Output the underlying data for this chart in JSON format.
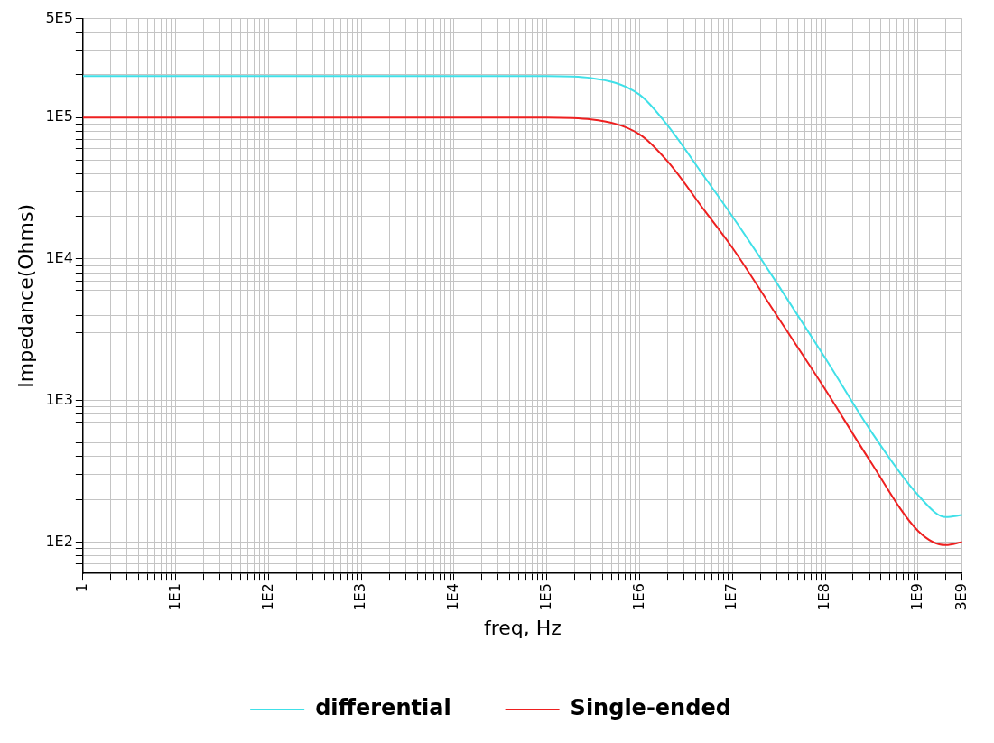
{
  "chart_data": {
    "type": "line",
    "xlabel": "freq, Hz",
    "ylabel": "Impedance(Ohms)",
    "log": "xy",
    "grid": true,
    "legend": "bottom",
    "marker": "none",
    "line_style": "solid",
    "xlim": [
      1,
      3000000000
    ],
    "ylim": [
      60,
      500000
    ],
    "xticks": [
      {
        "value": 1,
        "label": "1"
      },
      {
        "value": 2,
        "label": null
      },
      {
        "value": 3,
        "label": null
      },
      {
        "value": 4,
        "label": null
      },
      {
        "value": 5,
        "label": null
      },
      {
        "value": 6,
        "label": null
      },
      {
        "value": 7,
        "label": null
      },
      {
        "value": 8,
        "label": null
      },
      {
        "value": 9,
        "label": null
      },
      {
        "value": 10,
        "label": "1E1"
      },
      {
        "value": 20,
        "label": null
      },
      {
        "value": 30,
        "label": null
      },
      {
        "value": 40,
        "label": null
      },
      {
        "value": 50,
        "label": null
      },
      {
        "value": 60,
        "label": null
      },
      {
        "value": 70,
        "label": null
      },
      {
        "value": 80,
        "label": null
      },
      {
        "value": 90,
        "label": null
      },
      {
        "value": 100,
        "label": "1E2"
      },
      {
        "value": 200,
        "label": null
      },
      {
        "value": 300,
        "label": null
      },
      {
        "value": 400,
        "label": null
      },
      {
        "value": 500,
        "label": null
      },
      {
        "value": 600,
        "label": null
      },
      {
        "value": 700,
        "label": null
      },
      {
        "value": 800,
        "label": null
      },
      {
        "value": 900,
        "label": null
      },
      {
        "value": 1000,
        "label": "1E3"
      },
      {
        "value": 2000,
        "label": null
      },
      {
        "value": 3000,
        "label": null
      },
      {
        "value": 4000,
        "label": null
      },
      {
        "value": 5000,
        "label": null
      },
      {
        "value": 6000,
        "label": null
      },
      {
        "value": 7000,
        "label": null
      },
      {
        "value": 8000,
        "label": null
      },
      {
        "value": 9000,
        "label": null
      },
      {
        "value": 10000,
        "label": "1E4"
      },
      {
        "value": 20000,
        "label": null
      },
      {
        "value": 30000,
        "label": null
      },
      {
        "value": 40000,
        "label": null
      },
      {
        "value": 50000,
        "label": null
      },
      {
        "value": 60000,
        "label": null
      },
      {
        "value": 70000,
        "label": null
      },
      {
        "value": 80000,
        "label": null
      },
      {
        "value": 90000,
        "label": null
      },
      {
        "value": 100000,
        "label": "1E5"
      },
      {
        "value": 200000,
        "label": null
      },
      {
        "value": 300000,
        "label": null
      },
      {
        "value": 400000,
        "label": null
      },
      {
        "value": 500000,
        "label": null
      },
      {
        "value": 600000,
        "label": null
      },
      {
        "value": 700000,
        "label": null
      },
      {
        "value": 800000,
        "label": null
      },
      {
        "value": 900000,
        "label": null
      },
      {
        "value": 1000000,
        "label": "1E6"
      },
      {
        "value": 2000000,
        "label": null
      },
      {
        "value": 3000000,
        "label": null
      },
      {
        "value": 4000000,
        "label": null
      },
      {
        "value": 5000000,
        "label": null
      },
      {
        "value": 6000000,
        "label": null
      },
      {
        "value": 7000000,
        "label": null
      },
      {
        "value": 8000000,
        "label": null
      },
      {
        "value": 9000000,
        "label": null
      },
      {
        "value": 10000000,
        "label": "1E7"
      },
      {
        "value": 20000000,
        "label": null
      },
      {
        "value": 30000000,
        "label": null
      },
      {
        "value": 40000000,
        "label": null
      },
      {
        "value": 50000000,
        "label": null
      },
      {
        "value": 60000000,
        "label": null
      },
      {
        "value": 70000000,
        "label": null
      },
      {
        "value": 80000000,
        "label": null
      },
      {
        "value": 90000000,
        "label": null
      },
      {
        "value": 100000000,
        "label": "1E8"
      },
      {
        "value": 200000000,
        "label": null
      },
      {
        "value": 300000000,
        "label": null
      },
      {
        "value": 400000000,
        "label": null
      },
      {
        "value": 500000000,
        "label": null
      },
      {
        "value": 600000000,
        "label": null
      },
      {
        "value": 700000000,
        "label": null
      },
      {
        "value": 800000000,
        "label": null
      },
      {
        "value": 900000000,
        "label": null
      },
      {
        "value": 1000000000,
        "label": "1E9"
      },
      {
        "value": 2000000000,
        "label": null
      },
      {
        "value": 3000000000,
        "label": "3E9"
      }
    ],
    "yticks": [
      {
        "value": 70,
        "label": null
      },
      {
        "value": 80,
        "label": null
      },
      {
        "value": 90,
        "label": null
      },
      {
        "value": 100,
        "label": "1E2"
      },
      {
        "value": 200,
        "label": null
      },
      {
        "value": 300,
        "label": null
      },
      {
        "value": 400,
        "label": null
      },
      {
        "value": 500,
        "label": null
      },
      {
        "value": 600,
        "label": null
      },
      {
        "value": 700,
        "label": null
      },
      {
        "value": 800,
        "label": null
      },
      {
        "value": 900,
        "label": null
      },
      {
        "value": 1000,
        "label": "1E3"
      },
      {
        "value": 2000,
        "label": null
      },
      {
        "value": 3000,
        "label": null
      },
      {
        "value": 4000,
        "label": null
      },
      {
        "value": 5000,
        "label": null
      },
      {
        "value": 6000,
        "label": null
      },
      {
        "value": 7000,
        "label": null
      },
      {
        "value": 8000,
        "label": null
      },
      {
        "value": 9000,
        "label": null
      },
      {
        "value": 10000,
        "label": "1E4"
      },
      {
        "value": 20000,
        "label": null
      },
      {
        "value": 30000,
        "label": null
      },
      {
        "value": 40000,
        "label": null
      },
      {
        "value": 50000,
        "label": null
      },
      {
        "value": 60000,
        "label": null
      },
      {
        "value": 70000,
        "label": null
      },
      {
        "value": 80000,
        "label": null
      },
      {
        "value": 90000,
        "label": null
      },
      {
        "value": 100000,
        "label": "1E5"
      },
      {
        "value": 200000,
        "label": null
      },
      {
        "value": 300000,
        "label": null
      },
      {
        "value": 400000,
        "label": null
      },
      {
        "value": 500000,
        "label": "5E5"
      }
    ],
    "x": [
      1,
      10,
      100,
      1000,
      10000,
      100000,
      300000,
      1000000,
      2000000,
      5000000,
      10000000,
      30000000,
      100000000,
      300000000,
      1000000000,
      2000000000,
      3000000000
    ],
    "series": [
      {
        "name": "differential",
        "color": "#40e0e8",
        "values": [
          196000,
          196000,
          196000,
          196000,
          196000,
          196000,
          190000,
          145000,
          88000,
          38000,
          20000,
          6800,
          2000,
          630,
          215,
          150,
          155
        ]
      },
      {
        "name": "Single-ended",
        "color": "#ee2020",
        "values": [
          100000,
          100000,
          100000,
          100000,
          100000,
          100000,
          97000,
          76000,
          49000,
          22000,
          12000,
          4000,
          1200,
          380,
          120,
          95,
          100
        ]
      }
    ]
  }
}
